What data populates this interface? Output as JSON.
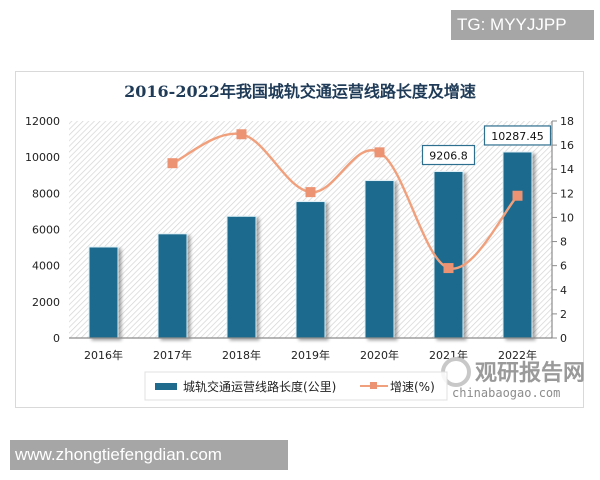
{
  "watermarks": {
    "top": "TG: MYYJJPP",
    "bottom": "www.zhongtiefengdian.com",
    "brand_cn": "观研报告网",
    "brand_en": "chinabaogao.com"
  },
  "colors": {
    "bar": "#1f6b8e",
    "line": "#f0a07c",
    "marker": "#ec9373",
    "title": "#1f3b57"
  },
  "chart_data": {
    "type": "bar",
    "title": "2016-2022年我国城轨交通运营线路长度及增速",
    "categories": [
      "2016年",
      "2017年",
      "2018年",
      "2019年",
      "2020年",
      "2021年",
      "2022年"
    ],
    "series": [
      {
        "name": "城轨交通运营线路长度(公里)",
        "type": "bar",
        "axis": "left",
        "values": [
          5033,
          5761,
          6730,
          7545.5,
          8708,
          9206.8,
          10287.45
        ],
        "data_labels": [
          null,
          null,
          null,
          null,
          null,
          "9206.8",
          "10287.45"
        ]
      },
      {
        "name": "增速(%)",
        "type": "line",
        "axis": "right",
        "values": [
          null,
          14.5,
          16.9,
          12.1,
          15.4,
          5.8,
          11.8
        ]
      }
    ],
    "ylabel": "",
    "ylim": [
      0,
      12000
    ],
    "yticks": [
      "0",
      "2000",
      "4000",
      "6000",
      "8000",
      "10000",
      "12000"
    ],
    "y2lim": [
      0,
      18
    ],
    "y2ticks": [
      "0",
      "2",
      "4",
      "6",
      "8",
      "10",
      "12",
      "14",
      "16",
      "18"
    ],
    "grid": false,
    "legend_position": "bottom"
  }
}
